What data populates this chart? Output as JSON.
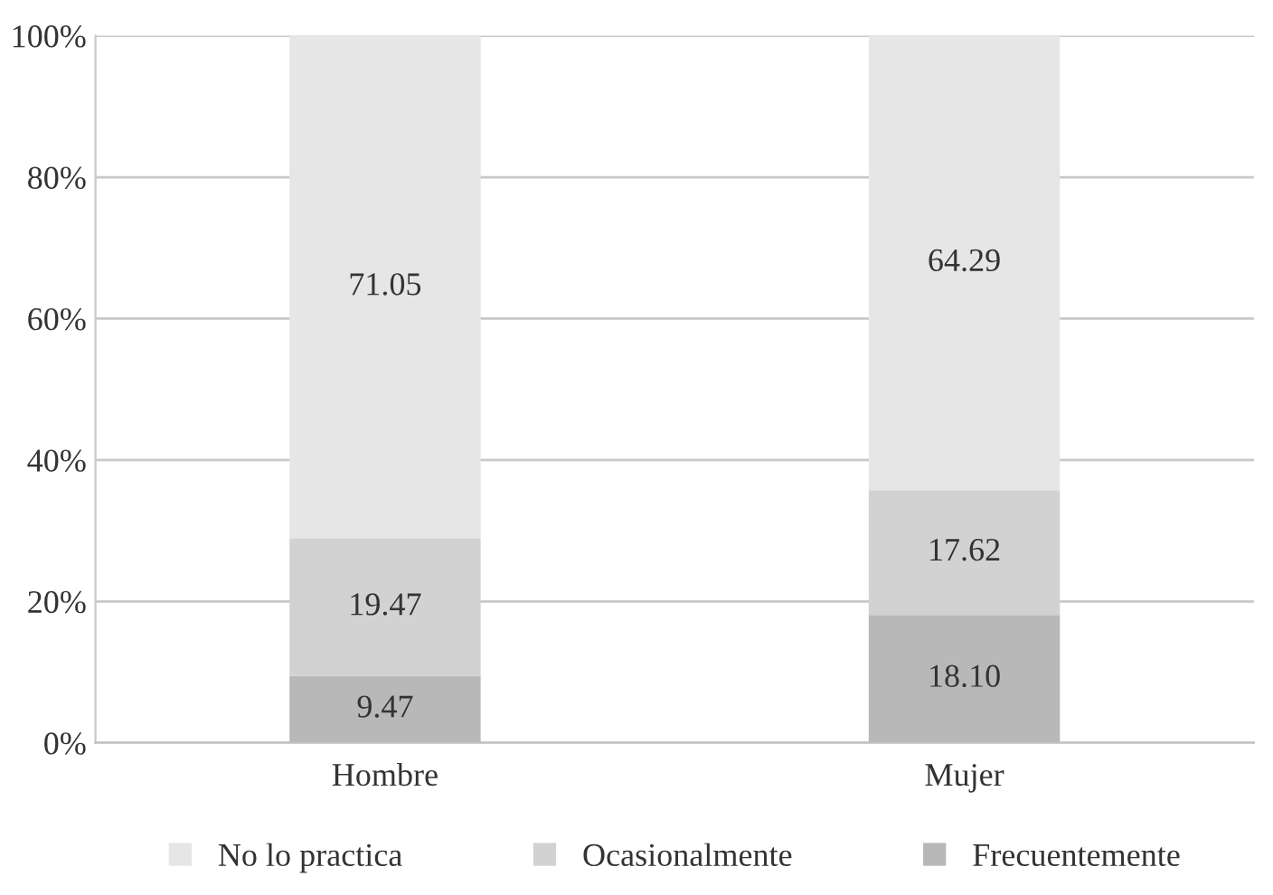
{
  "chart_data": {
    "type": "bar",
    "stacked": true,
    "categories": [
      "Hombre",
      "Mujer"
    ],
    "series": [
      {
        "name": "Frecuentemente",
        "color": "#b8b8b8",
        "values": [
          9.47,
          18.1
        ],
        "value_labels": [
          "9.47",
          "18.10"
        ]
      },
      {
        "name": "Ocasionalmente",
        "color": "#d2d2d2",
        "values": [
          19.47,
          17.62
        ],
        "value_labels": [
          "19.47",
          "17.62"
        ]
      },
      {
        "name": "No lo practica",
        "color": "#e6e6e6",
        "values": [
          71.05,
          64.29
        ],
        "value_labels": [
          "71.05",
          "64.29"
        ]
      }
    ],
    "ylim": [
      0,
      100
    ],
    "yticks": [
      {
        "value": 0,
        "label": "0%"
      },
      {
        "value": 20,
        "label": "20%"
      },
      {
        "value": 40,
        "label": "40%"
      },
      {
        "value": 60,
        "label": "60%"
      },
      {
        "value": 80,
        "label": "80%"
      },
      {
        "value": 100,
        "label": "100%"
      }
    ],
    "grid": "y",
    "legend": "bottom"
  }
}
